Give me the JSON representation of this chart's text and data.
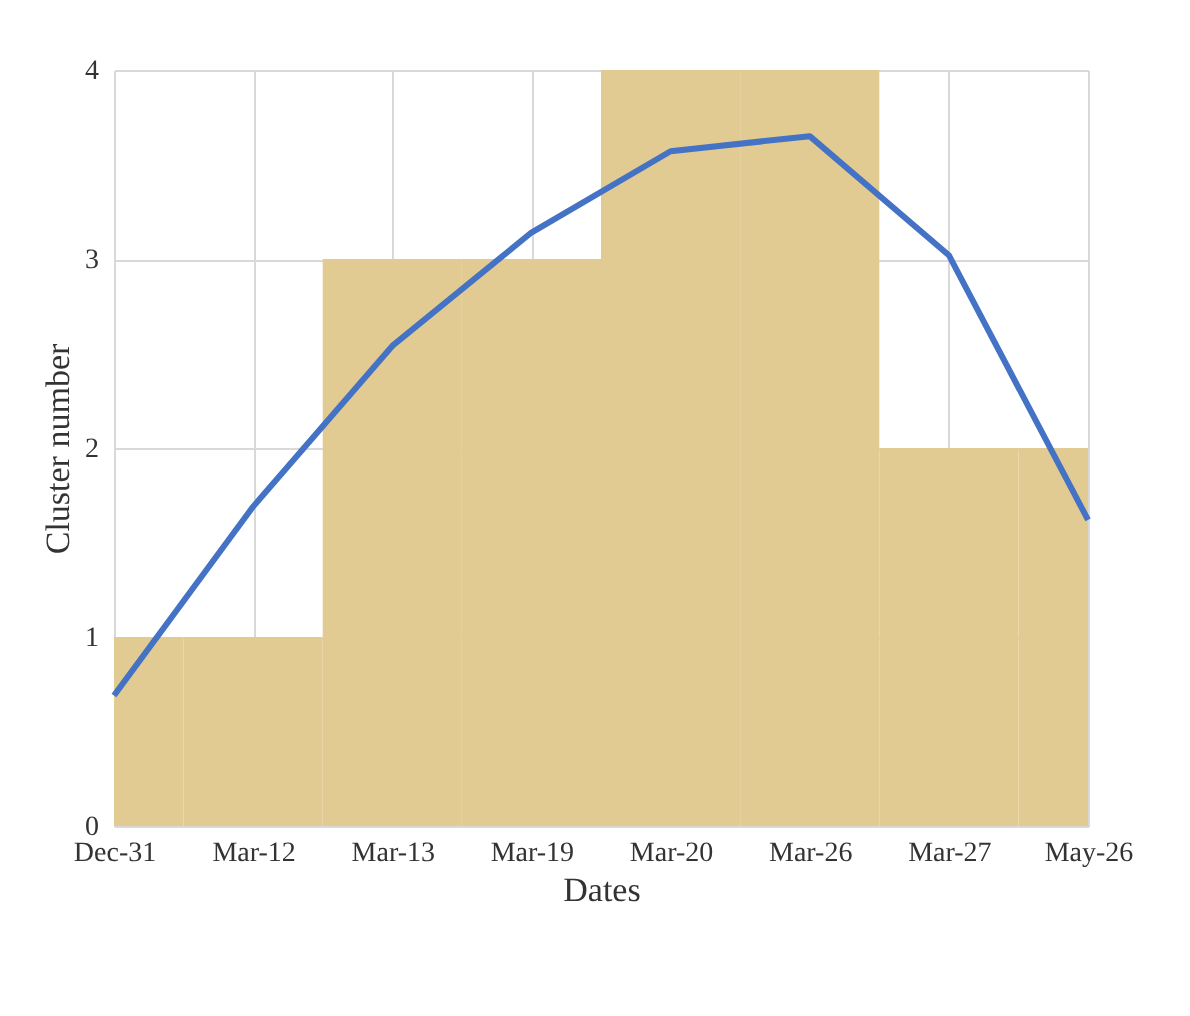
{
  "chart_data": {
    "type": "bar",
    "xlabel": "Dates",
    "ylabel": "Cluster number",
    "categories": [
      "Dec-31",
      "Mar-12",
      "Mar-13",
      "Mar-19",
      "Mar-20",
      "Mar-26",
      "Mar-27",
      "May-26"
    ],
    "series": [
      {
        "color": "#e2cb92",
        "values": [
          1,
          1,
          3,
          3,
          4,
          4,
          2,
          2
        ]
      },
      {
        "type": "line",
        "color": "#4472c4",
        "values": [
          0.69,
          1.69,
          2.54,
          3.14,
          3.57,
          3.65,
          3.02,
          1.62
        ]
      }
    ],
    "ylim": [
      0,
      4
    ],
    "yticks": [
      0,
      1,
      2,
      3,
      4
    ],
    "grid": true
  }
}
